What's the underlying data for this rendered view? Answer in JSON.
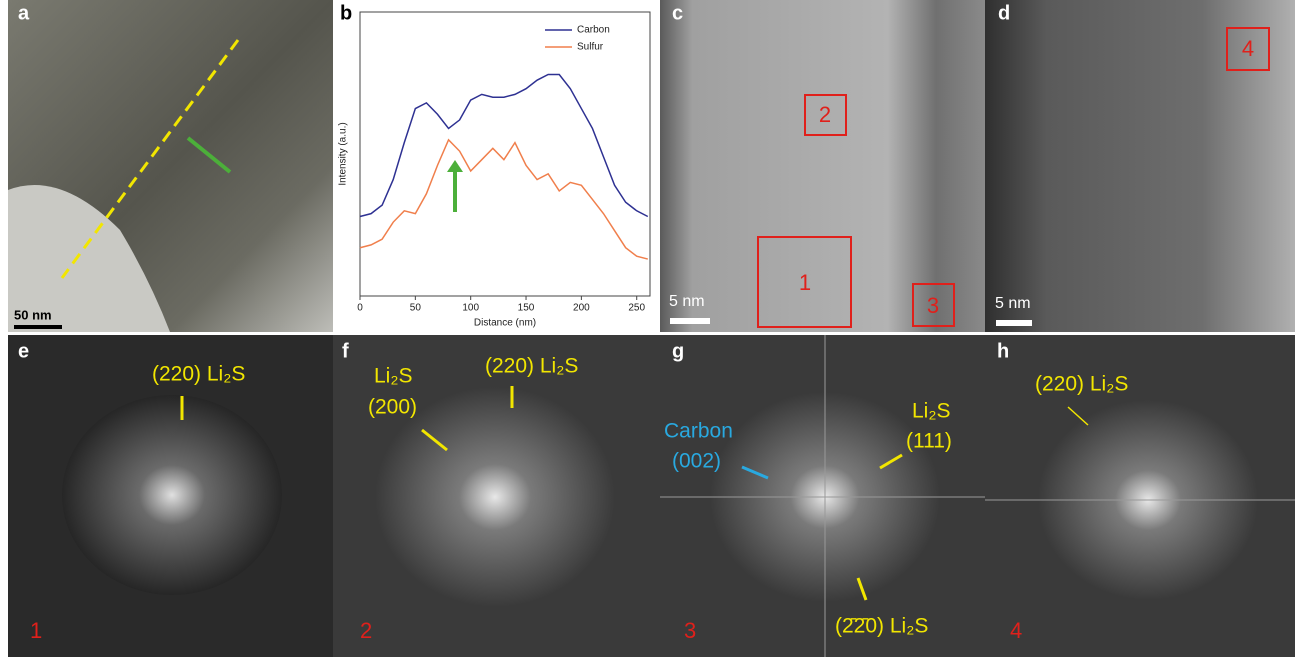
{
  "panel_a": {
    "label": "a",
    "scale_bar": "50 nm"
  },
  "panel_c": {
    "label": "c",
    "boxes": [
      "2",
      "1",
      "3"
    ],
    "scale_bar": "5 nm"
  },
  "panel_d": {
    "label": "d",
    "boxes": [
      "4"
    ],
    "scale_bar": "5 nm"
  },
  "panel_e": {
    "label": "e",
    "annotations": [
      "(220) Li₂S"
    ],
    "region": "1"
  },
  "panel_f": {
    "label": "f",
    "annotations": [
      "Li₂S",
      "(200)",
      "(220) Li₂S"
    ],
    "region": "2"
  },
  "panel_g": {
    "label": "g",
    "annotations": [
      "Carbon",
      "(002)",
      "Li₂S",
      "(111)",
      "(2̄2̄0) Li₂S"
    ],
    "region": "3"
  },
  "panel_h": {
    "label": "h",
    "annotations": [
      "(220) Li₂S"
    ],
    "region": "4"
  },
  "chart_data": {
    "type": "line",
    "label": "b",
    "xlabel": "Distance (nm)",
    "ylabel": "Intensity (a.u.)",
    "x": [
      0,
      10,
      20,
      30,
      40,
      50,
      60,
      70,
      80,
      90,
      100,
      110,
      120,
      130,
      140,
      150,
      160,
      170,
      180,
      190,
      200,
      210,
      220,
      230,
      240,
      250,
      260
    ],
    "series": [
      {
        "name": "Carbon",
        "color": "#2e3192",
        "values": [
          28,
          29,
          32,
          41,
          54,
          66,
          68,
          64,
          59,
          62,
          69,
          71,
          70,
          70,
          71,
          73,
          76,
          78,
          78,
          73,
          66,
          59,
          49,
          39,
          33,
          30,
          28
        ]
      },
      {
        "name": "Sulfur",
        "color": "#f07f4c",
        "values": [
          17,
          18,
          20,
          26,
          30,
          29,
          36,
          46,
          55,
          51,
          44,
          48,
          52,
          48,
          54,
          46,
          41,
          43,
          37,
          40,
          39,
          34,
          29,
          23,
          17,
          14,
          13
        ]
      }
    ],
    "xlim": [
      0,
      262
    ],
    "xticks": [
      0,
      50,
      100,
      150,
      200,
      250
    ],
    "ylim": [
      0,
      100
    ]
  }
}
